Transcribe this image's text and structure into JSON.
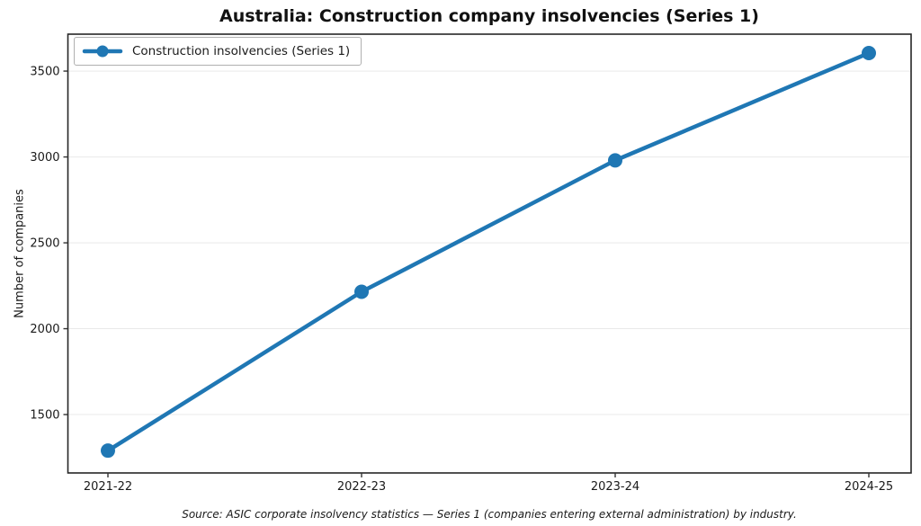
{
  "title": "Australia: Construction company insolvencies (Series 1)",
  "source_note": "Source: ASIC corporate insolvency statistics — Series 1 (companies entering external administration) by industry.",
  "legend": {
    "label": "Construction insolvencies (Series 1)",
    "position": "upper left"
  },
  "colors": {
    "line": "#1f77b4",
    "grid": "#e9e9e9",
    "spine": "#262626",
    "tick": "#333333",
    "text": "#1a1a1a",
    "legend_border": "#b0b0b0"
  },
  "chart_data": {
    "type": "line",
    "title": "Australia: Construction company insolvencies (Series 1)",
    "categories": [
      "2021-22",
      "2022-23",
      "2023-24",
      "2024-25"
    ],
    "series": [
      {
        "name": "Construction insolvencies (Series 1)",
        "values": [
          1290,
          2215,
          2980,
          3605
        ],
        "color": "#1f77b4",
        "marker": "circle"
      }
    ],
    "xlabel": "",
    "ylabel": "Number of companies",
    "yticks": [
      1500,
      2000,
      2500,
      3000,
      3500
    ],
    "ylim": [
      1160,
      3715
    ],
    "grid": "horizontal",
    "legend_position": "upper left"
  }
}
